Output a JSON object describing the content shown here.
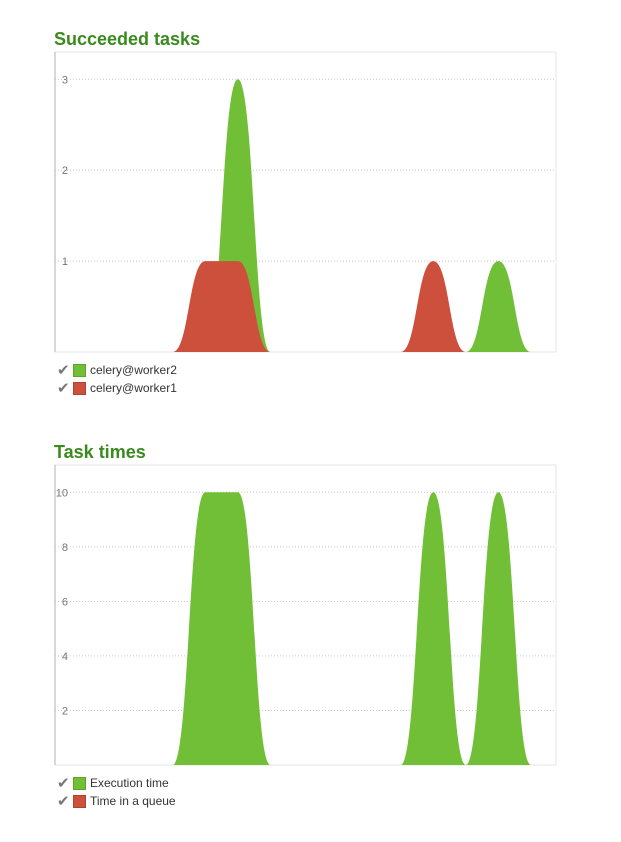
{
  "charts": [
    {
      "title": "Succeeded tasks",
      "legend": [
        {
          "label": "celery@worker2",
          "color": "#71bf37"
        },
        {
          "label": "celery@worker1",
          "color": "#cc503c"
        }
      ]
    },
    {
      "title": "Task times",
      "legend": [
        {
          "label": "Execution time",
          "color": "#71bf37"
        },
        {
          "label": "Time in a queue",
          "color": "#cc503c"
        }
      ]
    }
  ],
  "chart_data": [
    {
      "type": "area",
      "title": "Succeeded tasks",
      "xlabel": "",
      "ylabel": "",
      "ylim": [
        0,
        3.3
      ],
      "yticks": [
        1,
        2,
        3
      ],
      "grid": true,
      "legend_position": "bottom-left",
      "x": [
        0,
        1,
        2,
        3,
        4,
        5,
        6,
        7,
        8,
        9,
        10,
        11,
        12,
        13,
        14
      ],
      "series": [
        {
          "name": "celery@worker2",
          "color": "#71bf37",
          "values": [
            0,
            0,
            0,
            0,
            0,
            3,
            0,
            0,
            0,
            0,
            0,
            0,
            0,
            1,
            0
          ]
        },
        {
          "name": "celery@worker1",
          "color": "#cc503c",
          "values": [
            0,
            0,
            0,
            0,
            1,
            1,
            0,
            0,
            0,
            0,
            0,
            1,
            0,
            0,
            0
          ]
        }
      ]
    },
    {
      "type": "area",
      "title": "Task times",
      "xlabel": "",
      "ylabel": "",
      "ylim": [
        0,
        11
      ],
      "yticks": [
        2,
        4,
        6,
        8,
        10
      ],
      "grid": true,
      "legend_position": "bottom-left",
      "x": [
        0,
        1,
        2,
        3,
        4,
        5,
        6,
        7,
        8,
        9,
        10,
        11,
        12,
        13,
        14
      ],
      "series": [
        {
          "name": "Execution time",
          "color": "#71bf37",
          "values": [
            0,
            0,
            0,
            0,
            10,
            10,
            0,
            0,
            0,
            0,
            0,
            10,
            0,
            10,
            0
          ]
        },
        {
          "name": "Time in a queue",
          "color": "#cc503c",
          "values": [
            0,
            0,
            0,
            0,
            0,
            0,
            0,
            0,
            0,
            0,
            0,
            0,
            0,
            0,
            0
          ]
        }
      ]
    }
  ]
}
